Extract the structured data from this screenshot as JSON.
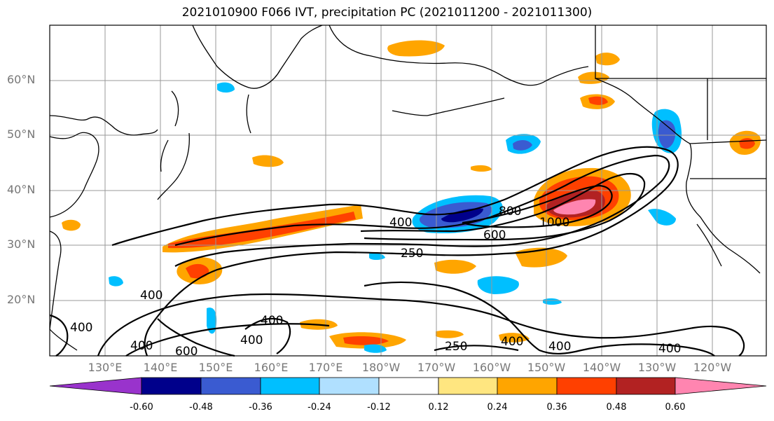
{
  "title": "2021010900 F066 IVT, precipitation PC (2021011200 - 2021011300)",
  "lat_labels": [
    "60°N",
    "50°N",
    "40°N",
    "30°N",
    "20°N"
  ],
  "lon_labels": [
    "130°E",
    "140°E",
    "150°E",
    "160°E",
    "170°E",
    "180°W",
    "170°W",
    "160°W",
    "150°W",
    "140°W",
    "130°W",
    "120°W"
  ],
  "contour_labels": [
    "400",
    "800",
    "1000",
    "600",
    "250",
    "400",
    "400",
    "400",
    "600",
    "400",
    "400",
    "250",
    "400",
    "400",
    "400"
  ],
  "colorbar": {
    "ticks": [
      "-0.60",
      "-0.48",
      "-0.36",
      "-0.24",
      "-0.12",
      "0.12",
      "0.24",
      "0.36",
      "0.48",
      "0.60"
    ],
    "colors": [
      "#9933cc",
      "#00008b",
      "#3a5bd1",
      "#00bfff",
      "#b0e0ff",
      "#ffffff",
      "#ffe680",
      "#ffa500",
      "#ff4000",
      "#b22222",
      "#ff85b0"
    ]
  }
}
